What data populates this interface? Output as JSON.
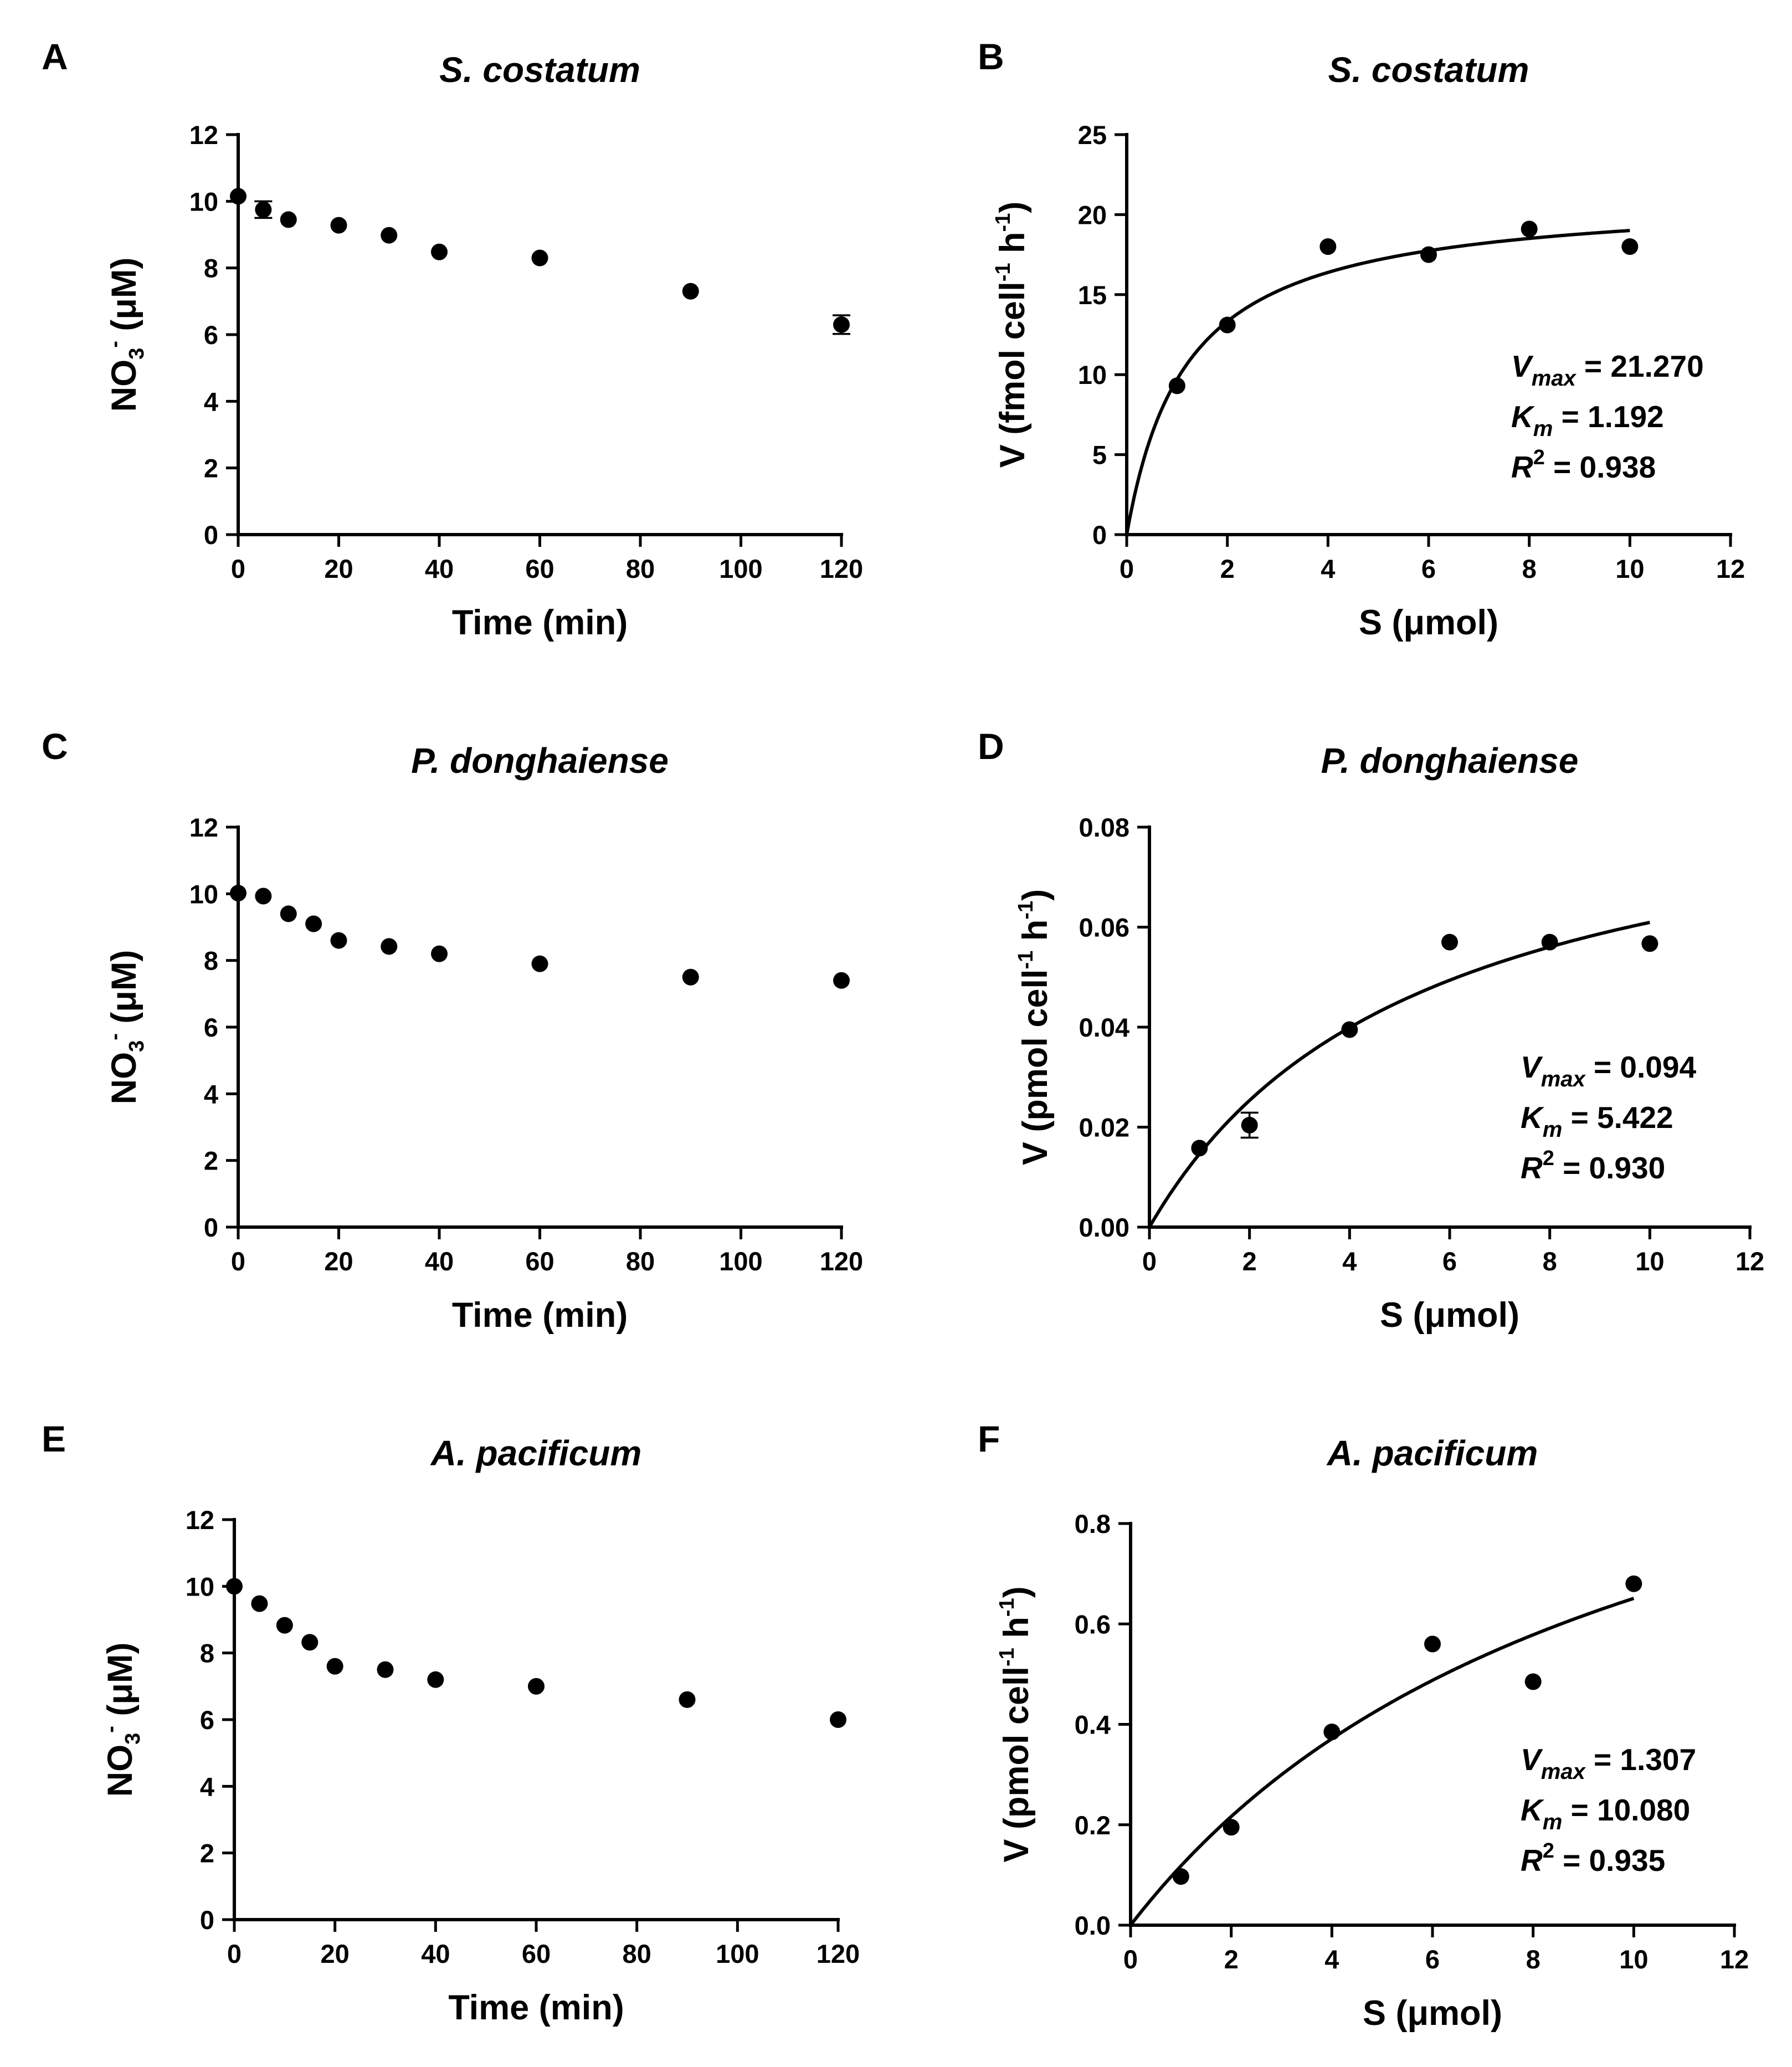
{
  "chart_data": [
    {
      "id": "A",
      "letter": "A",
      "type": "scatter",
      "title": "S. costatum",
      "xlabel": "Time (min)",
      "ylabel_html": "NO<sub>3</sub><sup>-</sup> (μM)",
      "xlim": [
        0,
        120
      ],
      "ylim": [
        0,
        12
      ],
      "xticks": [
        0,
        20,
        40,
        60,
        80,
        100,
        120
      ],
      "yticks": [
        0,
        2,
        4,
        6,
        8,
        10,
        12
      ],
      "x": [
        0,
        5,
        10,
        20,
        30,
        40,
        60,
        90,
        120
      ],
      "y": [
        10.15,
        9.75,
        9.45,
        9.28,
        8.98,
        8.48,
        8.3,
        7.3,
        6.3
      ],
      "yerr": [
        0,
        0.25,
        0,
        0,
        0,
        0,
        0,
        0,
        0.28
      ]
    },
    {
      "id": "B",
      "letter": "B",
      "type": "scatter",
      "title": "S. costatum",
      "xlabel": "S (μmol)",
      "ylabel_html": "V (fmol cell<sup>-1</sup> h<sup>-1</sup>)",
      "xlim": [
        0,
        12
      ],
      "ylim": [
        0,
        25
      ],
      "xticks": [
        0,
        2,
        4,
        6,
        8,
        10,
        12
      ],
      "yticks": [
        0,
        5,
        10,
        15,
        20,
        25
      ],
      "x": [
        1,
        2,
        4,
        6,
        8,
        10
      ],
      "y": [
        9.3,
        13.1,
        18.0,
        17.5,
        19.1,
        18.0
      ],
      "yerr": [
        0,
        0,
        0,
        0,
        0,
        0
      ],
      "fit": {
        "model": "michaelis-menten",
        "vmax": 21.27,
        "km": 1.192
      },
      "stats": {
        "vmax": "21.270",
        "km": "1.192",
        "r2": "0.938"
      }
    },
    {
      "id": "C",
      "letter": "C",
      "type": "scatter",
      "title": "P. donghaiense",
      "xlabel": "Time (min)",
      "ylabel_html": "NO<sub>3</sub><sup>-</sup> (μM)",
      "xlim": [
        0,
        120
      ],
      "ylim": [
        0,
        12
      ],
      "xticks": [
        0,
        20,
        40,
        60,
        80,
        100,
        120
      ],
      "yticks": [
        0,
        2,
        4,
        6,
        8,
        10,
        12
      ],
      "x": [
        0,
        5,
        10,
        15,
        20,
        30,
        40,
        60,
        90,
        120
      ],
      "y": [
        10.02,
        9.93,
        9.4,
        9.1,
        8.6,
        8.42,
        8.2,
        7.9,
        7.5,
        7.4
      ],
      "yerr": [
        0,
        0,
        0,
        0,
        0,
        0,
        0,
        0,
        0,
        0
      ]
    },
    {
      "id": "D",
      "letter": "D",
      "type": "scatter",
      "title": "P. donghaiense",
      "xlabel": "S (μmol)",
      "ylabel_html": "V (pmol cell<sup>-1</sup> h<sup>-1</sup>)",
      "xlim": [
        0,
        12
      ],
      "ylim": [
        0,
        0.08
      ],
      "xticks": [
        0,
        2,
        4,
        6,
        8,
        10,
        12
      ],
      "yticks": [
        0,
        0.02,
        0.04,
        0.06,
        0.08
      ],
      "ytick_labels": [
        "0.00",
        "0.02",
        "0.04",
        "0.06",
        "0.08"
      ],
      "x": [
        1,
        2,
        4,
        6,
        8,
        10
      ],
      "y": [
        0.0158,
        0.0204,
        0.0395,
        0.057,
        0.057,
        0.0567
      ],
      "yerr": [
        0,
        0.0025,
        0,
        0,
        0,
        0
      ],
      "fit": {
        "model": "michaelis-menten",
        "vmax": 0.094,
        "km": 5.422
      },
      "stats": {
        "vmax": "0.094",
        "km": "5.422",
        "r2": "0.930"
      }
    },
    {
      "id": "E",
      "letter": "E",
      "type": "scatter",
      "title": "A. pacificum",
      "xlabel": "Time (min)",
      "ylabel_html": "NO<sub>3</sub><sup>-</sup> (μM)",
      "xlim": [
        0,
        120
      ],
      "ylim": [
        0,
        12
      ],
      "xticks": [
        0,
        20,
        40,
        60,
        80,
        100,
        120
      ],
      "yticks": [
        0,
        2,
        4,
        6,
        8,
        10,
        12
      ],
      "x": [
        0,
        5,
        10,
        15,
        20,
        30,
        40,
        60,
        90,
        120
      ],
      "y": [
        10.0,
        9.48,
        8.83,
        8.32,
        7.6,
        7.5,
        7.2,
        7.0,
        6.6,
        6.0
      ],
      "yerr": [
        0,
        0,
        0,
        0,
        0,
        0,
        0,
        0,
        0,
        0
      ]
    },
    {
      "id": "F",
      "letter": "F",
      "type": "scatter",
      "title": "A. pacificum",
      "xlabel": "S (μmol)",
      "ylabel_html": "V (pmol cell<sup>-1</sup> h<sup>-1</sup>)",
      "xlim": [
        0,
        12
      ],
      "ylim": [
        0,
        0.8
      ],
      "xticks": [
        0,
        2,
        4,
        6,
        8,
        10,
        12
      ],
      "yticks": [
        0,
        0.2,
        0.4,
        0.6,
        0.8
      ],
      "ytick_labels": [
        "0.0",
        "0.2",
        "0.4",
        "0.6",
        "0.8"
      ],
      "x": [
        1,
        2,
        4,
        6,
        8,
        10
      ],
      "y": [
        0.097,
        0.195,
        0.385,
        0.56,
        0.485,
        0.68
      ],
      "yerr": [
        0,
        0,
        0,
        0,
        0,
        0
      ],
      "fit": {
        "model": "michaelis-menten",
        "vmax": 1.307,
        "km": 10.08
      },
      "stats": {
        "vmax": "1.307",
        "km": "10.080",
        "r2": "0.935"
      }
    }
  ]
}
